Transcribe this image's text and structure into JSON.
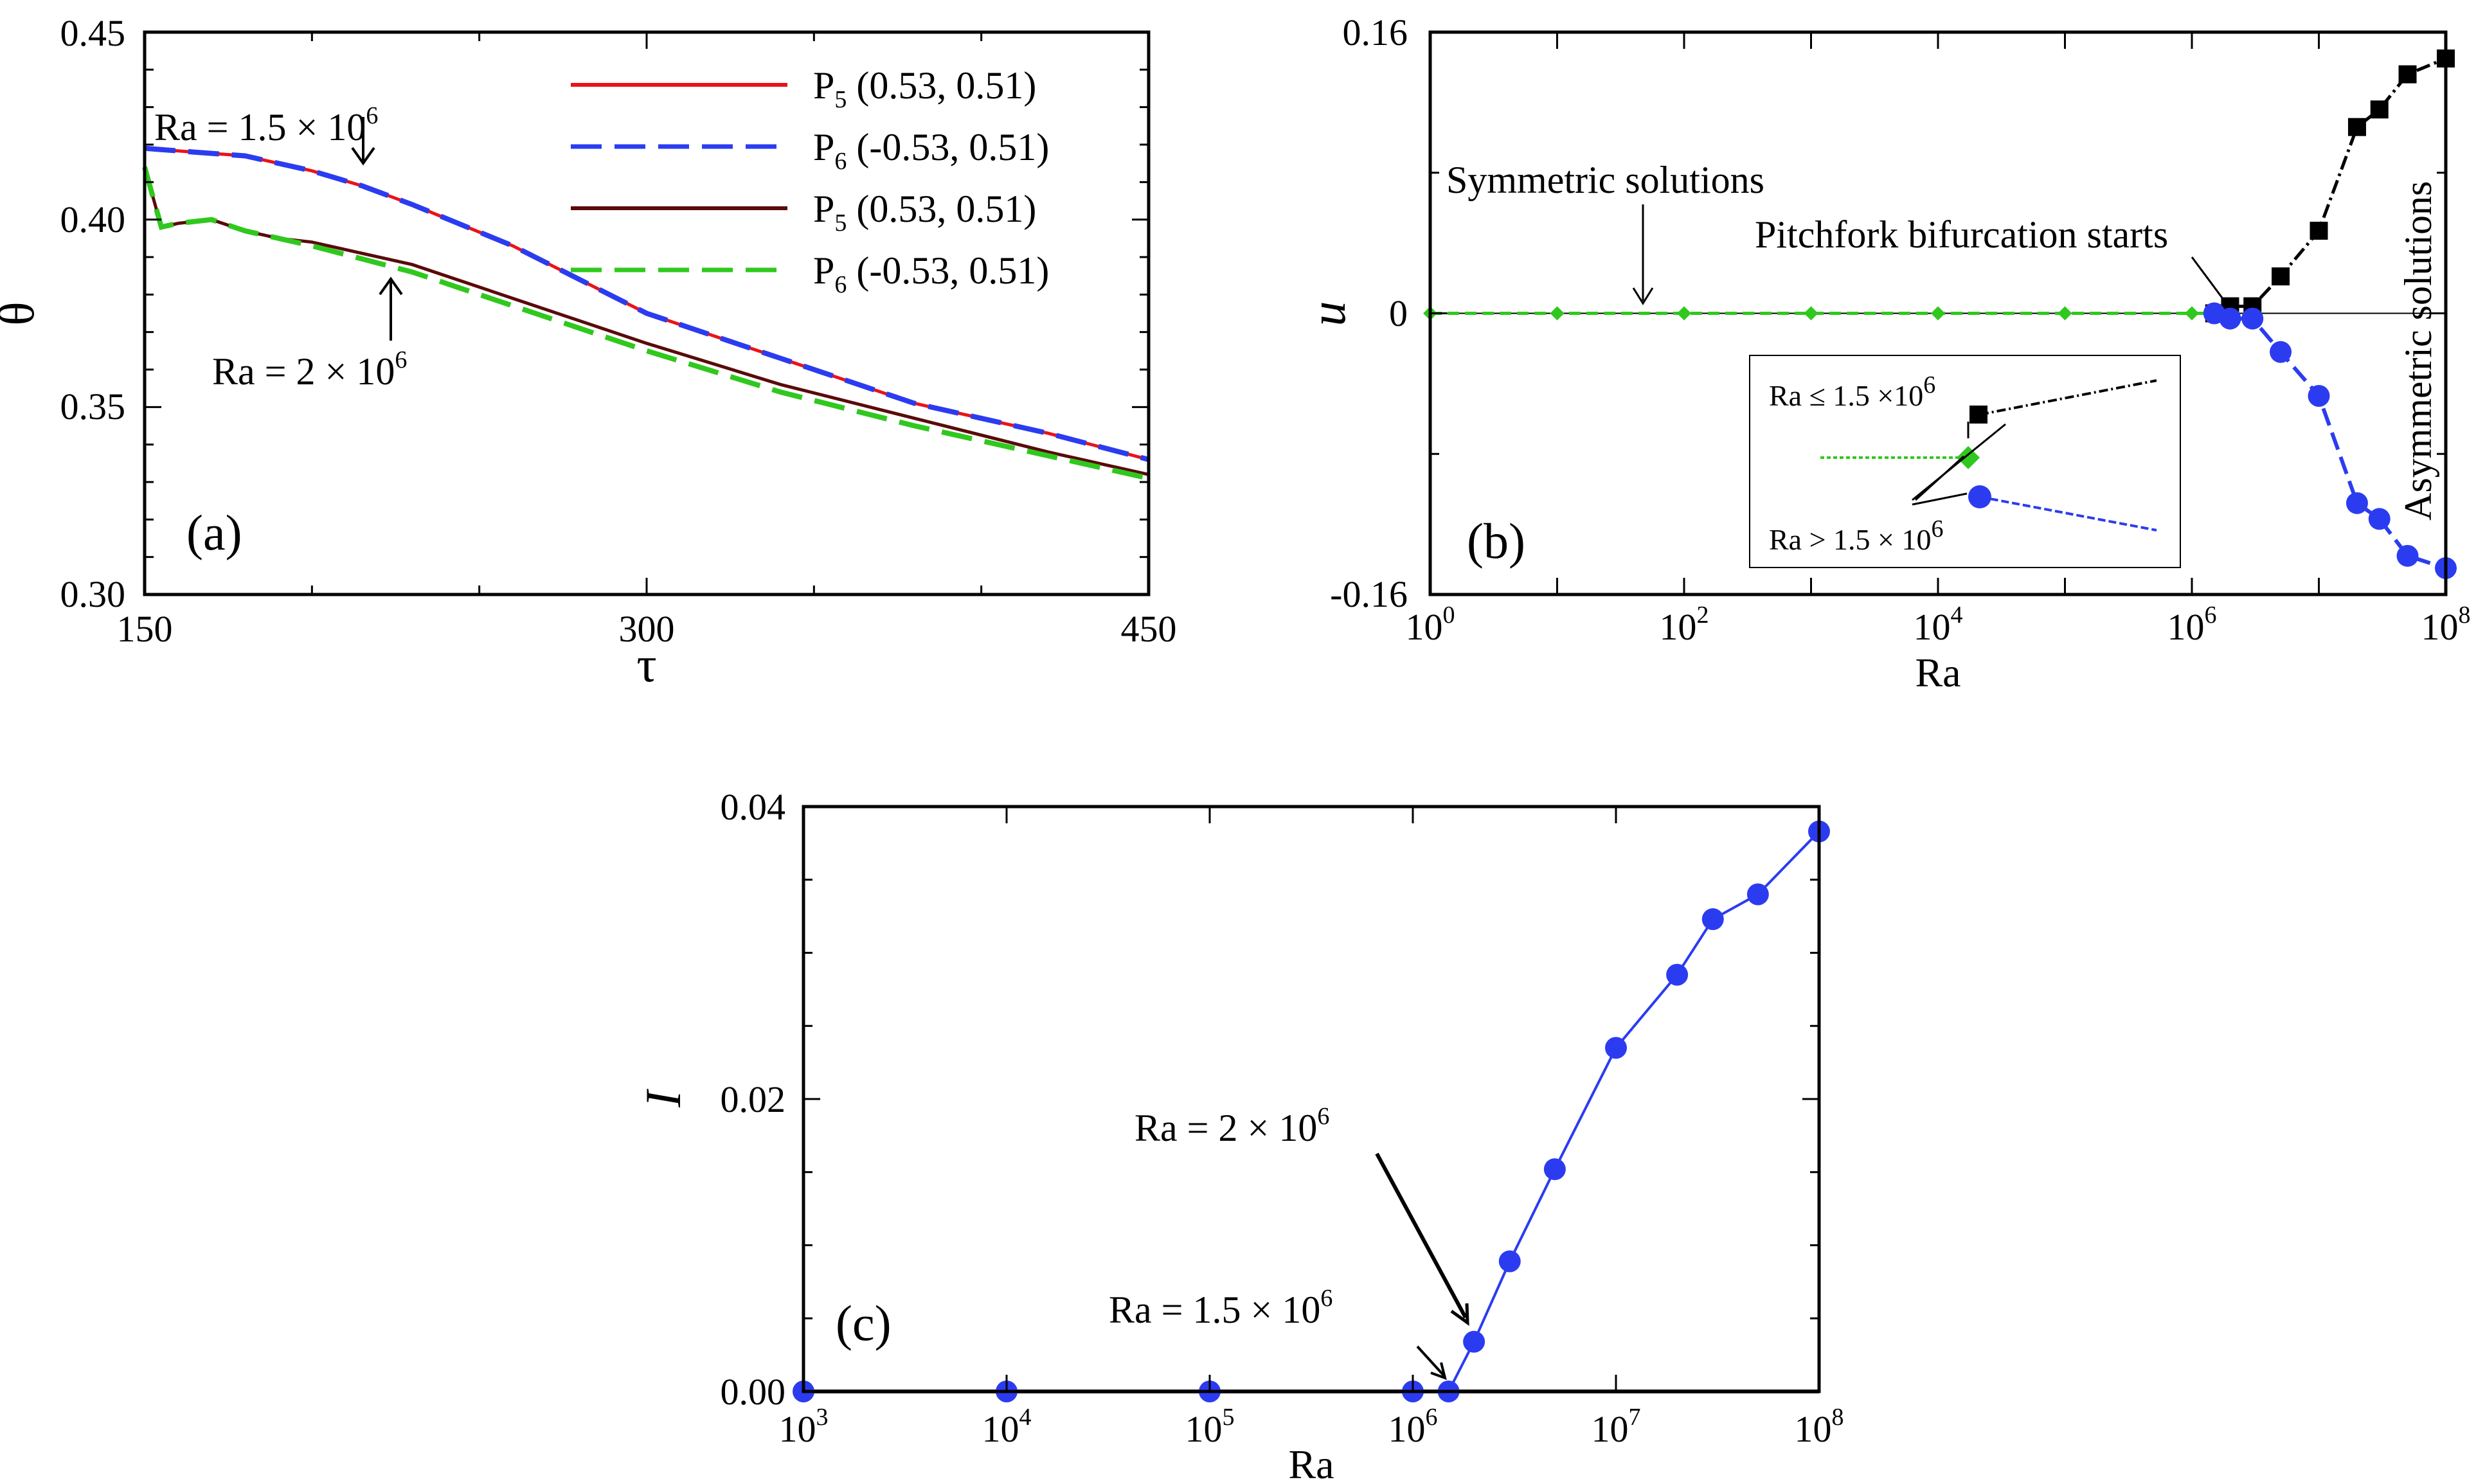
{
  "chart_data": [
    {
      "panel": "(a)",
      "type": "line",
      "xlabel": "τ",
      "ylabel": "θ",
      "xlim": [
        150,
        450
      ],
      "ylim": [
        0.3,
        0.45
      ],
      "xticks": [
        "150",
        "300",
        "450"
      ],
      "yticks": [
        "0.30",
        "0.35",
        "0.40",
        "0.45"
      ],
      "legend": [
        "P5 (0.53, 0.51)",
        "P6 (-0.53, 0.51)",
        "P5 (0.53, 0.51)",
        "P6 (-0.53, 0.51)"
      ],
      "legend_texts": [
        "P",
        "5",
        " (0.53, 0.51)",
        "P",
        "6",
        " (-0.53, 0.51)",
        "P",
        "5",
        " (0.53, 0.51)",
        "P",
        "6",
        " (-0.53, 0.51)"
      ],
      "annotations": [
        "Ra = 1.5 × 10",
        "6",
        "Ra = 2 × 10",
        "6"
      ],
      "series": [
        {
          "name": "P5 (0.53, 0.51), Ra = 1.5×10^6",
          "color": "#e8141b",
          "dash": "solid",
          "x": [
            150,
            165,
            180,
            200,
            215,
            230,
            260,
            300,
            340,
            380,
            420,
            450
          ],
          "y": [
            0.419,
            0.418,
            0.417,
            0.413,
            0.409,
            0.404,
            0.393,
            0.375,
            0.363,
            0.351,
            0.343,
            0.336
          ]
        },
        {
          "name": "P6 (-0.53, 0.51), Ra = 1.5×10^6",
          "color": "#2b3cf0",
          "dash": "dashed",
          "x": [
            150,
            165,
            180,
            200,
            215,
            230,
            260,
            300,
            340,
            380,
            420,
            450
          ],
          "y": [
            0.419,
            0.418,
            0.417,
            0.413,
            0.409,
            0.404,
            0.393,
            0.375,
            0.363,
            0.351,
            0.343,
            0.336
          ]
        },
        {
          "name": "P5 (0.53, 0.51), Ra = 2×10^6",
          "color": "#5a0a0a",
          "dash": "solid",
          "x": [
            150,
            155,
            160,
            170,
            180,
            190,
            200,
            230,
            260,
            300,
            340,
            380,
            420,
            450
          ],
          "y": [
            0.414,
            0.398,
            0.399,
            0.4,
            0.397,
            0.395,
            0.394,
            0.388,
            0.379,
            0.367,
            0.356,
            0.347,
            0.338,
            0.332
          ]
        },
        {
          "name": "P6 (-0.53, 0.51), Ra = 2×10^6",
          "color": "#30c81e",
          "dash": "dashed",
          "x": [
            150,
            155,
            160,
            170,
            180,
            190,
            200,
            230,
            260,
            300,
            340,
            380,
            420,
            450
          ],
          "y": [
            0.414,
            0.398,
            0.399,
            0.4,
            0.397,
            0.395,
            0.393,
            0.386,
            0.377,
            0.365,
            0.354,
            0.345,
            0.337,
            0.331
          ]
        }
      ]
    },
    {
      "panel": "(b)",
      "type": "line",
      "xscale": "log",
      "xlabel": "Ra",
      "ylabel": "u",
      "xlim": [
        1,
        100000000
      ],
      "ylim": [
        -0.16,
        0.16
      ],
      "xticks": [
        "10",
        "0",
        "10",
        "2",
        "10",
        "4",
        "10",
        "6",
        "10",
        "8"
      ],
      "yticks": [
        "-0.16",
        "0",
        "0.16"
      ],
      "annotations": [
        "Symmetric solutions",
        "Pitchfork bifurcation starts",
        "Asymmetric solutions"
      ],
      "inset_labels": [
        "Ra ≤ 1.5 ×10",
        "6",
        "Ra > 1.5 × 10",
        "6"
      ],
      "series": [
        {
          "name": "Symmetric solutions",
          "color": "#30c81e",
          "marker": "diamond",
          "x": [
            1,
            10,
            100,
            1000,
            10000,
            100000,
            1000000,
            1500000
          ],
          "y": [
            0,
            0,
            0,
            0,
            0,
            0,
            0,
            0
          ]
        },
        {
          "name": "Asymmetric solutions (upper branch)",
          "color": "#000000",
          "marker": "square",
          "x": [
            1500000,
            2000000,
            3000000,
            5000000,
            10000000,
            20000000,
            30000000,
            50000000,
            100000000
          ],
          "y": [
            0.0,
            0.004,
            0.004,
            0.021,
            0.047,
            0.106,
            0.116,
            0.136,
            0.145
          ]
        },
        {
          "name": "Asymmetric solutions (lower branch)",
          "color": "#2b3cf0",
          "marker": "circle",
          "x": [
            1500000,
            2000000,
            3000000,
            5000000,
            10000000,
            20000000,
            30000000,
            50000000,
            100000000
          ],
          "y": [
            0.0,
            -0.003,
            -0.003,
            -0.022,
            -0.047,
            -0.108,
            -0.117,
            -0.138,
            -0.145
          ]
        }
      ]
    },
    {
      "panel": "(c)",
      "type": "line",
      "xscale": "log",
      "xlabel": "Ra",
      "ylabel": "I",
      "xlim": [
        1000,
        100000000
      ],
      "ylim": [
        0,
        0.04
      ],
      "xticks": [
        "10",
        "3",
        "10",
        "4",
        "10",
        "5",
        "10",
        "6",
        "10",
        "7",
        "10",
        "8"
      ],
      "yticks": [
        "0.00",
        "0.02",
        "0.04"
      ],
      "annotations": [
        "Ra = 2 × 10",
        "6",
        "Ra = 1.5 × 10",
        "6"
      ],
      "series": [
        {
          "name": "I",
          "color": "#2b3cf0",
          "marker": "circle",
          "x": [
            1000,
            10000,
            100000,
            1000000,
            1500000,
            2000000,
            3000000,
            5000000,
            10000000,
            20000000,
            30000000,
            50000000,
            100000000
          ],
          "y": [
            0,
            0,
            0,
            0,
            0,
            0.0034,
            0.0089,
            0.0152,
            0.0235,
            0.0285,
            0.0323,
            0.034,
            0.0383
          ]
        }
      ]
    }
  ]
}
